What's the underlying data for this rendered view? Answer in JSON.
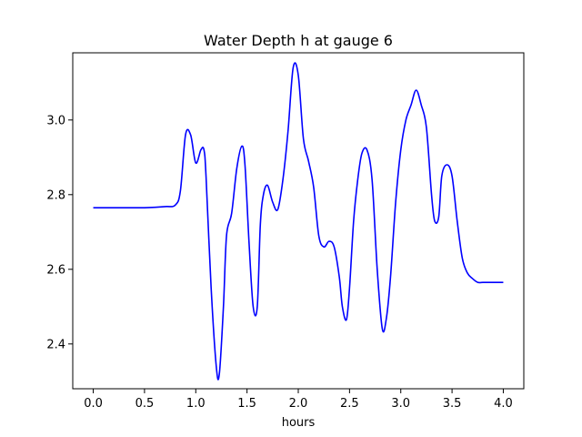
{
  "chart_data": {
    "type": "line",
    "title": "Water Depth h at gauge 6",
    "xlabel": "hours",
    "ylabel": "",
    "xlim": [
      -0.2,
      4.2
    ],
    "ylim": [
      2.28,
      3.18
    ],
    "grid": false,
    "x_ticks": [
      0.0,
      0.5,
      1.0,
      1.5,
      2.0,
      2.5,
      3.0,
      3.5,
      4.0
    ],
    "x_tick_labels": [
      "0.0",
      "0.5",
      "1.0",
      "1.5",
      "2.0",
      "2.5",
      "3.0",
      "3.5",
      "4.0"
    ],
    "y_ticks": [
      2.4,
      2.6,
      2.8,
      3.0
    ],
    "y_tick_labels": [
      "2.4",
      "2.6",
      "2.8",
      "3.0"
    ],
    "series": [
      {
        "color": "#0000ff",
        "x": [
          0.0,
          0.3,
          0.5,
          0.7,
          0.8,
          0.85,
          0.9,
          0.95,
          1.0,
          1.05,
          1.08,
          1.1,
          1.15,
          1.2,
          1.23,
          1.27,
          1.3,
          1.35,
          1.4,
          1.45,
          1.48,
          1.52,
          1.56,
          1.6,
          1.63,
          1.66,
          1.7,
          1.75,
          1.8,
          1.85,
          1.9,
          1.95,
          2.0,
          2.05,
          2.1,
          2.15,
          2.2,
          2.25,
          2.3,
          2.35,
          2.4,
          2.43,
          2.47,
          2.5,
          2.54,
          2.58,
          2.62,
          2.67,
          2.72,
          2.77,
          2.82,
          2.86,
          2.9,
          2.95,
          3.0,
          3.05,
          3.1,
          3.15,
          3.2,
          3.25,
          3.3,
          3.33,
          3.37,
          3.4,
          3.45,
          3.5,
          3.55,
          3.6,
          3.65,
          3.7,
          3.75,
          3.8,
          3.85,
          3.88,
          3.92,
          3.96,
          4.0
        ],
        "values": [
          2.765,
          2.765,
          2.765,
          2.768,
          2.772,
          2.81,
          2.96,
          2.96,
          2.885,
          2.92,
          2.92,
          2.85,
          2.55,
          2.34,
          2.32,
          2.5,
          2.69,
          2.75,
          2.87,
          2.93,
          2.88,
          2.67,
          2.5,
          2.5,
          2.72,
          2.8,
          2.825,
          2.78,
          2.76,
          2.84,
          2.97,
          3.14,
          3.12,
          2.95,
          2.89,
          2.82,
          2.69,
          2.66,
          2.675,
          2.66,
          2.58,
          2.5,
          2.465,
          2.55,
          2.73,
          2.84,
          2.91,
          2.92,
          2.84,
          2.6,
          2.44,
          2.47,
          2.58,
          2.78,
          2.92,
          3.0,
          3.04,
          3.08,
          3.04,
          2.98,
          2.8,
          2.73,
          2.74,
          2.85,
          2.88,
          2.85,
          2.73,
          2.63,
          2.59,
          2.575,
          2.565,
          2.565,
          2.565,
          2.565,
          2.565,
          2.565,
          2.565
        ]
      }
    ]
  }
}
